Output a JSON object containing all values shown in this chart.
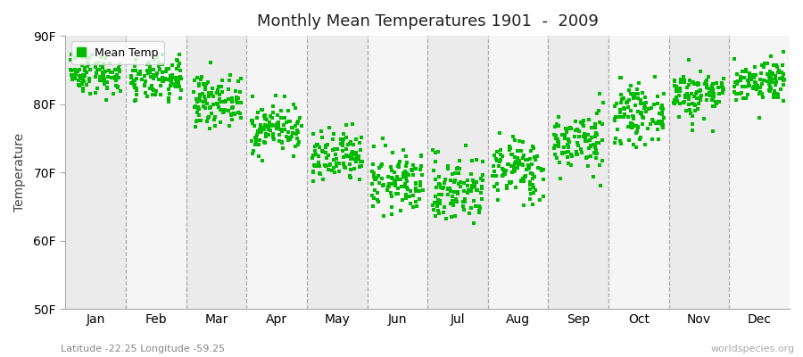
{
  "title": "Monthly Mean Temperatures 1901  -  2009",
  "ylabel": "Temperature",
  "xlabel_labels": [
    "Jan",
    "Feb",
    "Mar",
    "Apr",
    "May",
    "Jun",
    "Jul",
    "Aug",
    "Sep",
    "Oct",
    "Nov",
    "Dec"
  ],
  "ytick_labels": [
    "50F",
    "60F",
    "70F",
    "80F",
    "90F"
  ],
  "ytick_values": [
    50,
    60,
    70,
    80,
    90
  ],
  "ylim": [
    50,
    90
  ],
  "subtitle": "Latitude -22.25 Longitude -59.25",
  "watermark": "worldspecies.org",
  "dot_color": "#00bb00",
  "background_color": "#ffffff",
  "band_color_odd": "#ebebeb",
  "band_color_even": "#f5f5f5",
  "legend_label": "Mean Temp",
  "monthly_means": [
    84.5,
    83.5,
    80.5,
    76.5,
    72.0,
    68.5,
    67.5,
    70.5,
    74.5,
    78.5,
    81.5,
    83.5
  ],
  "monthly_stds": [
    1.5,
    1.6,
    1.8,
    1.8,
    2.0,
    2.2,
    2.5,
    2.3,
    2.2,
    2.0,
    1.8,
    1.6
  ],
  "n_years": 109,
  "seed": 42
}
